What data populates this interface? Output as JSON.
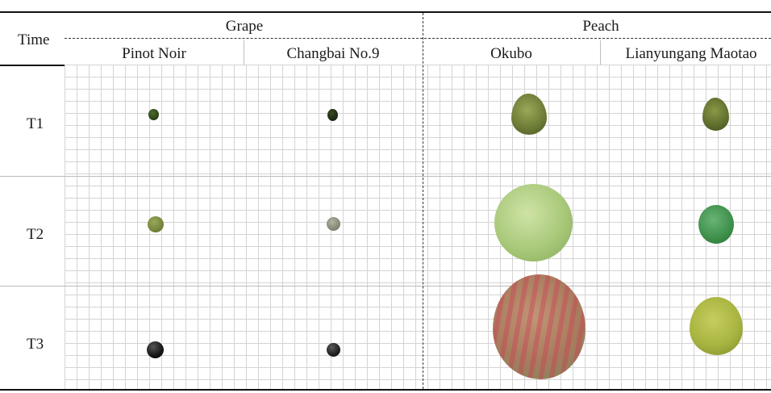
{
  "header": {
    "time_label": "Time",
    "groups": [
      {
        "label": "Grape",
        "cultivars": [
          "Pinot Noir",
          "Changbai No.9"
        ]
      },
      {
        "label": "Peach",
        "cultivars": [
          "Okubo",
          "Lianyungang Maotao"
        ]
      }
    ]
  },
  "rows": [
    {
      "label": "T1"
    },
    {
      "label": "T2"
    },
    {
      "label": "T3"
    }
  ],
  "fruit_images": [
    {
      "name": "pinot-noir-t1",
      "color": "#2f4a1e"
    },
    {
      "name": "changbai-t1",
      "color": "#1e2a12"
    },
    {
      "name": "okubo-t1",
      "color": "#7a8a42"
    },
    {
      "name": "maotao-t1",
      "color": "#5e6e2e"
    },
    {
      "name": "pinot-noir-t2",
      "color": "#6b7a34"
    },
    {
      "name": "changbai-t2",
      "color": "#8a8a7a"
    },
    {
      "name": "okubo-t2",
      "color": "#a9c97a"
    },
    {
      "name": "maotao-t2",
      "color": "#3d8f4a"
    },
    {
      "name": "pinot-noir-t3",
      "color": "#151515"
    },
    {
      "name": "changbai-t3",
      "color": "#222222"
    },
    {
      "name": "okubo-t3",
      "color": "#b06a5e"
    },
    {
      "name": "maotao-t3",
      "color": "#a9b540"
    }
  ]
}
